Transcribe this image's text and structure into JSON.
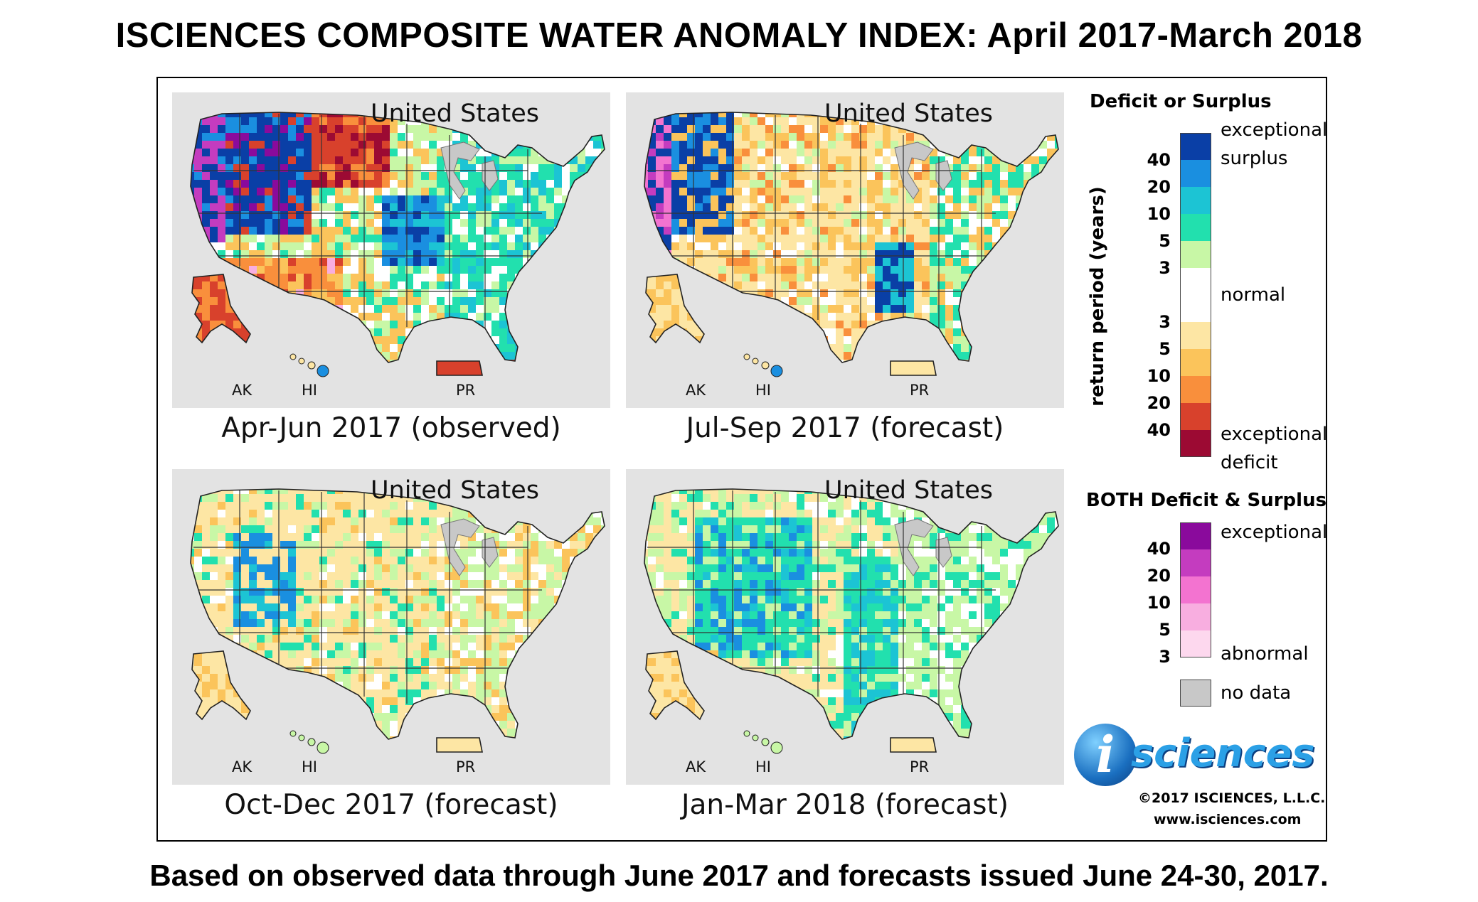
{
  "title": "ISCIENCES COMPOSITE WATER ANOMALY INDEX: April 2017-March 2018",
  "footer": "Based on observed data through June 2017 and forecasts issued June 24-30, 2017.",
  "panels": [
    {
      "country": "United States",
      "caption": "Apr-Jun 2017 (observed)",
      "labels": {
        "ak": "AK",
        "hi": "HI",
        "pr": "PR"
      },
      "pattern": "observed"
    },
    {
      "country": "United States",
      "caption": "Jul-Sep 2017 (forecast)",
      "labels": {
        "ak": "AK",
        "hi": "HI",
        "pr": "PR"
      },
      "pattern": "summer"
    },
    {
      "country": "United States",
      "caption": "Oct-Dec 2017 (forecast)",
      "labels": {
        "ak": "AK",
        "hi": "HI",
        "pr": "PR"
      },
      "pattern": "fall"
    },
    {
      "country": "United States",
      "caption": "Jan-Mar 2018 (forecast)",
      "labels": {
        "ak": "AK",
        "hi": "HI",
        "pr": "PR"
      },
      "pattern": "winter"
    }
  ],
  "legend": {
    "deficit_surplus_heading": "Deficit or Surplus",
    "axis_label": "return period (years)",
    "surplus_numbers": [
      "40",
      "20",
      "10",
      "5",
      "3"
    ],
    "deficit_numbers": [
      "3",
      "5",
      "10",
      "20",
      "40"
    ],
    "exceptional_surplus": "exceptional",
    "exceptional_surplus_2": "surplus",
    "normal": "normal",
    "exceptional_deficit": "exceptional",
    "exceptional_deficit_2": "deficit",
    "surplus_colors": [
      "#0a3fa6",
      "#1a8fe0",
      "#1cc4d4",
      "#22e0ae",
      "#c8f7a6"
    ],
    "normal_color": "#ffffff",
    "deficit_colors": [
      "#fde6a4",
      "#fbc45b",
      "#f98f3c",
      "#d8412c",
      "#9c0a33"
    ],
    "both_heading": "BOTH Deficit & Surplus",
    "both_numbers": [
      "40",
      "20",
      "10",
      "5",
      "3"
    ],
    "both_exceptional": "exceptional",
    "both_abnormal": "abnormal",
    "both_colors": [
      "#8a0a9c",
      "#c43cbf",
      "#f373d0",
      "#f8aee0",
      "#fdd8ee"
    ],
    "no_data": "no data",
    "no_data_color": "#c8c8c8"
  },
  "logo": {
    "letter": "i",
    "word": "sciences"
  },
  "copyright": "©2017 ISCIENCES, L.L.C.",
  "website": "www.isciences.com"
}
